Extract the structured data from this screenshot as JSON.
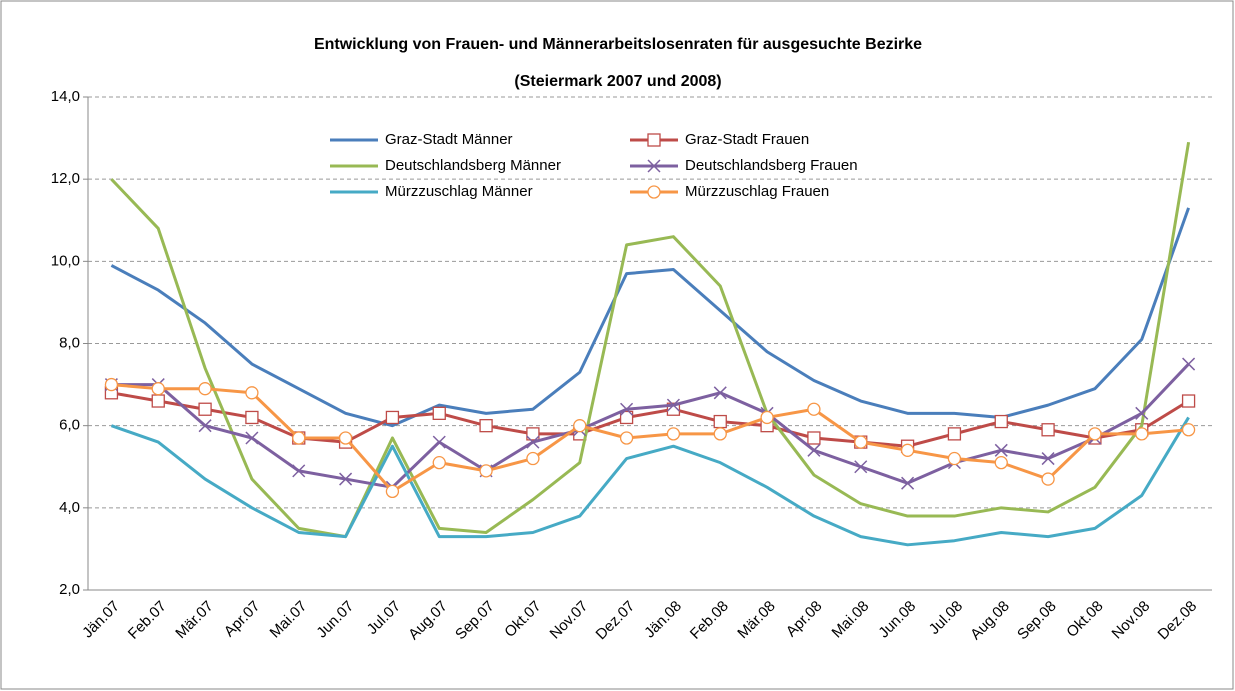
{
  "chart_data": {
    "type": "line",
    "title": "Entwicklung von Frauen- und Männerarbeitslosenraten für ausgesuchte Bezirke",
    "subtitle": "(Steiermark 2007 und 2008)",
    "categories": [
      "Jän.07",
      "Feb.07",
      "Mär.07",
      "Apr.07",
      "Mai.07",
      "Jun.07",
      "Jul.07",
      "Aug.07",
      "Sep.07",
      "Okt.07",
      "Nov.07",
      "Dez.07",
      "Jän.08",
      "Feb.08",
      "Mär.08",
      "Apr.08",
      "Mai.08",
      "Jun.08",
      "Jul.08",
      "Aug.08",
      "Sep.08",
      "Okt.08",
      "Nov.08",
      "Dez.08"
    ],
    "series": [
      {
        "name": "Graz-Stadt Männer",
        "color": "#4a7ebb",
        "marker": "none",
        "values": [
          9.9,
          9.3,
          8.5,
          7.5,
          6.9,
          6.3,
          6.0,
          6.5,
          6.3,
          6.4,
          7.3,
          9.7,
          9.8,
          8.8,
          7.8,
          7.1,
          6.6,
          6.3,
          6.3,
          6.2,
          6.5,
          6.9,
          8.1,
          11.3
        ]
      },
      {
        "name": "Graz-Stadt Frauen",
        "color": "#be4b48",
        "marker": "square",
        "values": [
          6.8,
          6.6,
          6.4,
          6.2,
          5.7,
          5.6,
          6.2,
          6.3,
          6.0,
          5.8,
          5.8,
          6.2,
          6.4,
          6.1,
          6.0,
          5.7,
          5.6,
          5.5,
          5.8,
          6.1,
          5.9,
          5.7,
          5.9,
          6.6
        ]
      },
      {
        "name": "Deutschlandsberg Männer",
        "color": "#98b954",
        "marker": "none",
        "values": [
          12.0,
          10.8,
          7.4,
          4.7,
          3.5,
          3.3,
          5.7,
          3.5,
          3.4,
          4.2,
          5.1,
          10.4,
          10.6,
          9.4,
          6.3,
          4.8,
          4.1,
          3.8,
          3.8,
          4.0,
          3.9,
          4.5,
          6.0,
          12.9
        ]
      },
      {
        "name": "Deutschlandsberg Frauen",
        "color": "#7d60a0",
        "marker": "x",
        "values": [
          7.0,
          7.0,
          6.0,
          5.7,
          4.9,
          4.7,
          4.5,
          5.6,
          4.9,
          5.6,
          5.9,
          6.4,
          6.5,
          6.8,
          6.3,
          5.4,
          5.0,
          4.6,
          5.1,
          5.4,
          5.2,
          5.7,
          6.3,
          7.5
        ]
      },
      {
        "name": "Mürzzuschlag Männer",
        "color": "#46aac5",
        "marker": "none",
        "values": [
          6.0,
          5.6,
          4.7,
          4.0,
          3.4,
          3.3,
          5.5,
          3.3,
          3.3,
          3.4,
          3.8,
          5.2,
          5.5,
          5.1,
          4.5,
          3.8,
          3.3,
          3.1,
          3.2,
          3.4,
          3.3,
          3.5,
          4.3,
          6.2
        ]
      },
      {
        "name": "Mürzzuschlag Frauen",
        "color": "#f79646",
        "marker": "circle",
        "values": [
          7.0,
          6.9,
          6.9,
          6.8,
          5.7,
          5.7,
          4.4,
          5.1,
          4.9,
          5.2,
          6.0,
          5.7,
          5.8,
          5.8,
          6.2,
          6.4,
          5.6,
          5.4,
          5.2,
          5.1,
          4.7,
          5.8,
          5.8,
          5.9
        ]
      }
    ],
    "ylim": [
      2,
      14
    ],
    "yticks": [
      {
        "value": 2,
        "label": "2,0"
      },
      {
        "value": 4,
        "label": "4,0"
      },
      {
        "value": 6,
        "label": "6,0"
      },
      {
        "value": 8,
        "label": "8,0"
      },
      {
        "value": 10,
        "label": "10,0"
      },
      {
        "value": 12,
        "label": "12,0"
      },
      {
        "value": 14,
        "label": "14,0"
      }
    ],
    "grid": true,
    "legend": "upper center"
  }
}
